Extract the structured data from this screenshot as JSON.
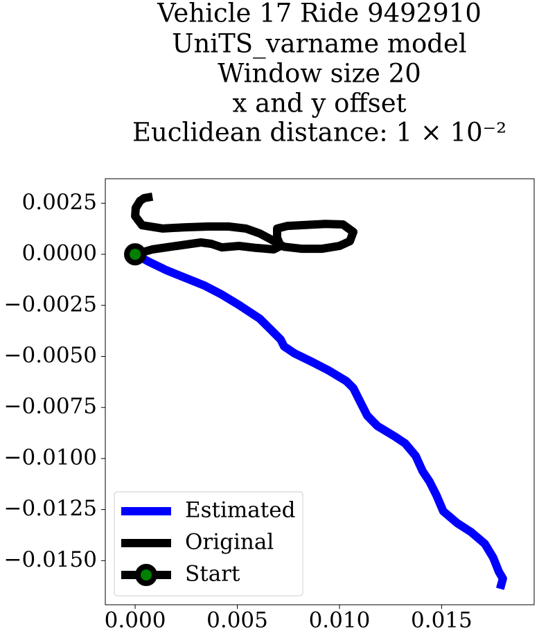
{
  "chart_data": {
    "type": "line",
    "title": [
      "Vehicle 17 Ride 9492910",
      "UniTS_varname model",
      "Window size 20",
      "x and y offset",
      "Euclidean distance: 1 × 10⁻²"
    ],
    "series": [
      {
        "name": "Estimated",
        "color": "blue",
        "x": [
          0,
          0.00068,
          0.00153,
          0.00237,
          0.00339,
          0.00424,
          0.00508,
          0.0061,
          0.00678,
          0.00712,
          0.00729,
          0.0078,
          0.00864,
          0.00949,
          0.01034,
          0.01068,
          0.01102,
          0.01136,
          0.01186,
          0.01271,
          0.01322,
          0.01373,
          0.01407,
          0.01441,
          0.01475,
          0.01508,
          0.01576,
          0.01644,
          0.01712,
          0.01753,
          0.0178,
          0.018,
          0.01786
        ],
        "values": [
          0,
          -0.00037,
          -0.00078,
          -0.00112,
          -0.00153,
          -0.00197,
          -0.00248,
          -0.00315,
          -0.00383,
          -0.00417,
          -0.00451,
          -0.00485,
          -0.00526,
          -0.0057,
          -0.00621,
          -0.00655,
          -0.00723,
          -0.0079,
          -0.00841,
          -0.00892,
          -0.00926,
          -0.00987,
          -0.01062,
          -0.01113,
          -0.0118,
          -0.01258,
          -0.01316,
          -0.0136,
          -0.01418,
          -0.01486,
          -0.01554,
          -0.01588,
          -0.01638
        ]
      },
      {
        "name": "Original",
        "color": "black",
        "x": [
          0,
          0.00085,
          0.00203,
          0.00322,
          0.00373,
          0.00424,
          0.00508,
          0.00593,
          0.00678,
          0.00712,
          0.00695,
          0.00695,
          0.00746,
          0.00932,
          0.01017,
          0.01068,
          0.01051,
          0.01,
          0.00915,
          0.00814,
          0.00729,
          0.00661,
          0.0061,
          0.00542,
          0.00458,
          0.00356,
          0.00237,
          0.00136,
          0.00034,
          0,
          3e-05,
          0.00024,
          0.00044,
          0.00085
        ],
        "values": [
          0,
          0.00024,
          0.00041,
          0.00058,
          0.00051,
          0.00034,
          0.00041,
          0.00031,
          0.00024,
          0.00041,
          0.00081,
          0.00126,
          0.00139,
          0.00149,
          0.00146,
          0.00109,
          0.00064,
          0.00041,
          0.00027,
          0.00027,
          0.00037,
          0.00075,
          0.00102,
          0.00126,
          0.00136,
          0.00136,
          0.00132,
          0.00126,
          0.00142,
          0.00187,
          0.00227,
          0.00261,
          0.00275,
          0.00282
        ]
      },
      {
        "name": "Start",
        "color": "black",
        "marker_color": "green",
        "x": [
          0
        ],
        "values": [
          0
        ]
      }
    ],
    "xlim": [
      -0.00146,
      0.01953
    ],
    "ylim": [
      -0.01716,
      0.0037
    ],
    "xticks": [
      {
        "value": 0,
        "label": "0.000"
      },
      {
        "value": 0.005,
        "label": "0.005"
      },
      {
        "value": 0.01,
        "label": "0.010"
      },
      {
        "value": 0.015,
        "label": "0.015"
      }
    ],
    "yticks": [
      {
        "value": 0.0025,
        "label": "0.0025"
      },
      {
        "value": 0,
        "label": "0.0000"
      },
      {
        "value": -0.0025,
        "label": "−0.0025"
      },
      {
        "value": -0.005,
        "label": "−0.0050"
      },
      {
        "value": -0.0075,
        "label": "−0.0075"
      },
      {
        "value": -0.01,
        "label": "−0.0100"
      },
      {
        "value": -0.0125,
        "label": "−0.0125"
      },
      {
        "value": -0.015,
        "label": "−0.0150"
      }
    ],
    "legend": "lower left"
  }
}
